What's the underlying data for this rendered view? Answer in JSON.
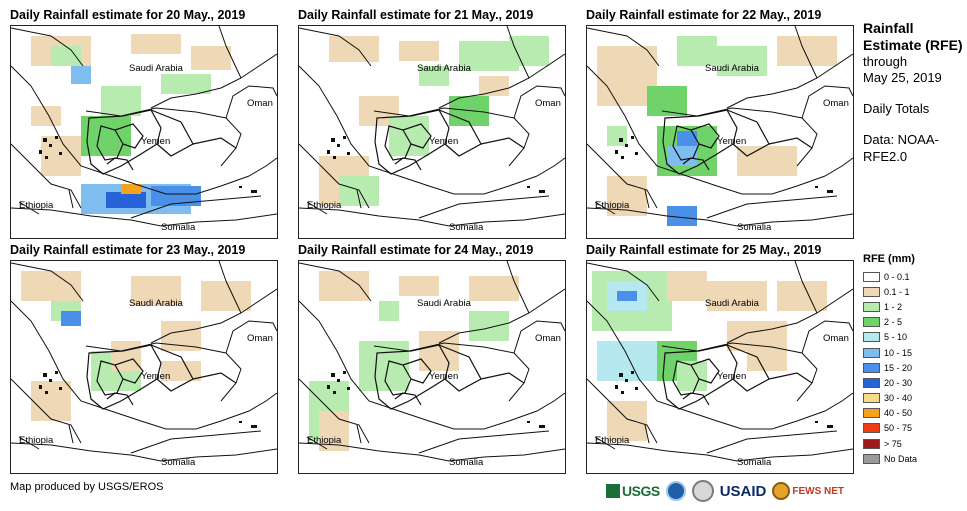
{
  "panels": [
    {
      "title": "Daily Rainfall estimate for 20 May., 2019",
      "rainfall_pattern": "scattered light rain over Saudi Arabia and Yemen; moderate to heavy rain (10-50 mm) over the Gulf of Aden / northern Somalia"
    },
    {
      "title": "Daily Rainfall estimate for 21 May., 2019",
      "rainfall_pattern": "scattered light rain (0.1-5 mm) over Saudi Arabia, Yemen and Ethiopia"
    },
    {
      "title": "Daily Rainfall estimate for 22 May., 2019",
      "rainfall_pattern": "light to moderate rain over western Yemen (5-20 mm) and Saudi Arabia"
    },
    {
      "title": "Daily Rainfall estimate for 23 May., 2019",
      "rainfall_pattern": "scattered light rain over Saudi Arabia and Yemen; few 10-15 mm spots"
    },
    {
      "title": "Daily Rainfall estimate for 24 May., 2019",
      "rainfall_pattern": "scattered light rain over Saudi Arabia, western Yemen and Ethiopia"
    },
    {
      "title": "Daily Rainfall estimate for 25 May., 2019",
      "rainfall_pattern": "light to moderate rain over Saudi Arabia and western Yemen"
    }
  ],
  "map_labels": {
    "saudi_arabia": "Saudi Arabia",
    "oman": "Oman",
    "yemen": "Yemen",
    "ethiopia": "Ethiopia",
    "somalia": "Somalia"
  },
  "side": {
    "title": "Rainfall Estimate (RFE)",
    "subtitle_line1": "through",
    "subtitle_line2": "May 25, 2019",
    "totals": "Daily Totals",
    "data_source": "Data: NOAA-RFE2.0"
  },
  "legend": {
    "title": "RFE (mm)",
    "items": [
      {
        "label": "0 - 0.1",
        "color": "#ffffff"
      },
      {
        "label": "0.1 - 1",
        "color": "#efd8b5"
      },
      {
        "label": "1 - 2",
        "color": "#b8ebb0"
      },
      {
        "label": "2 - 5",
        "color": "#6fd36a"
      },
      {
        "label": "5 - 10",
        "color": "#b5e9ef"
      },
      {
        "label": "10 - 15",
        "color": "#7fbdf0"
      },
      {
        "label": "15 - 20",
        "color": "#4a8fe8"
      },
      {
        "label": "20 - 30",
        "color": "#2563d6"
      },
      {
        "label": "30 - 40",
        "color": "#f7dd8a"
      },
      {
        "label": "40 - 50",
        "color": "#f7a21b"
      },
      {
        "label": "50 - 75",
        "color": "#ee3b16"
      },
      {
        "label": "> 75",
        "color": "#9c1a1a"
      },
      {
        "label": "No Data",
        "color": "#9a9a9a"
      }
    ]
  },
  "footer": {
    "credit": "Map produced by USGS/EROS",
    "logos": [
      "USGS",
      "NOAA",
      "US seal",
      "USAID",
      "FEWS NET"
    ]
  },
  "colors": {
    "border": "#222222"
  }
}
